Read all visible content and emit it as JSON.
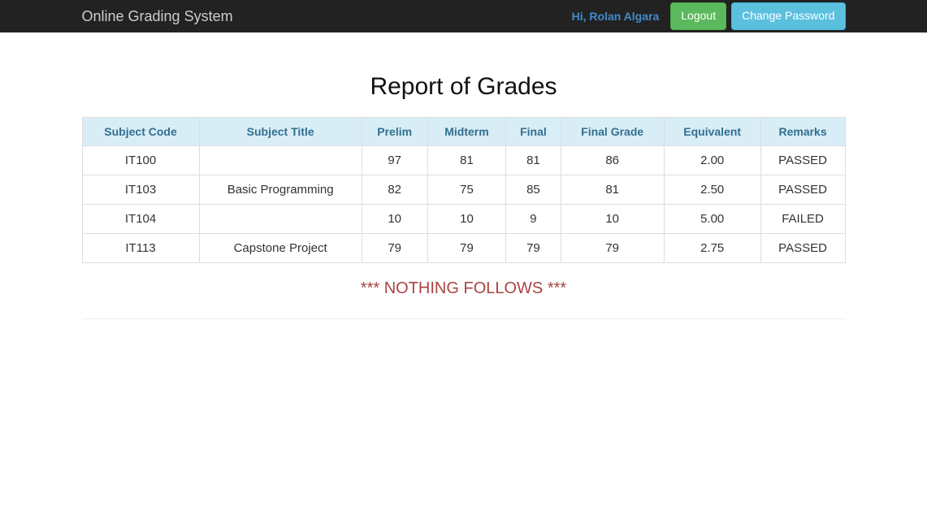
{
  "navbar": {
    "brand": "Online Grading System",
    "greeting": "Hi, Rolan Algara",
    "logout_label": "Logout",
    "change_password_label": "Change Password"
  },
  "page": {
    "title": "Report of Grades",
    "nothing_follows": "*** NOTHING FOLLOWS ***"
  },
  "table": {
    "columns": [
      "Subject Code",
      "Subject Title",
      "Prelim",
      "Midterm",
      "Final",
      "Final Grade",
      "Equivalent",
      "Remarks"
    ],
    "rows": [
      {
        "code": "IT100",
        "title": "",
        "prelim": "97",
        "midterm": "81",
        "final": "81",
        "final_grade": "86",
        "equivalent": "2.00",
        "remarks": "PASSED",
        "remarks_status": "passed"
      },
      {
        "code": "IT103",
        "title": "Basic Programming",
        "prelim": "82",
        "midterm": "75",
        "final": "85",
        "final_grade": "81",
        "equivalent": "2.50",
        "remarks": "PASSED",
        "remarks_status": "passed"
      },
      {
        "code": "IT104",
        "title": "",
        "prelim": "10",
        "midterm": "10",
        "final": "9",
        "final_grade": "10",
        "equivalent": "5.00",
        "remarks": "FAILED",
        "remarks_status": "failed"
      },
      {
        "code": "IT113",
        "title": "Capstone Project",
        "prelim": "79",
        "midterm": "79",
        "final": "79",
        "final_grade": "79",
        "equivalent": "2.75",
        "remarks": "PASSED",
        "remarks_status": "passed"
      }
    ]
  },
  "colors": {
    "navbar_bg": "#222222",
    "brand_text": "#cccccc",
    "link_blue": "#428bca",
    "btn_success": "#5cb85c",
    "btn_info": "#5bc0de",
    "th_bg": "#d9edf7",
    "th_text": "#31708f",
    "border": "#dddddd",
    "passed": "#3c763d",
    "failed": "#a94442"
  }
}
